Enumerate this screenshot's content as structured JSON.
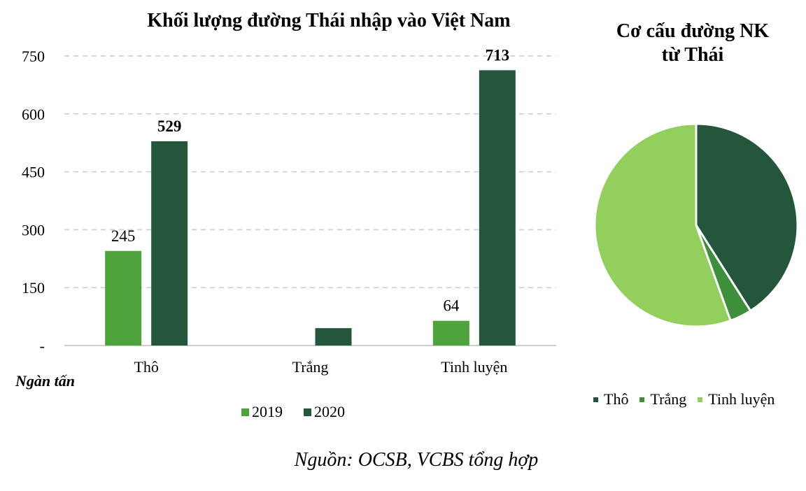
{
  "chart_data": [
    {
      "type": "bar",
      "title": "Khối lượng đường Thái nhập vào Việt Nam",
      "unit_label": "Ngàn tấn",
      "categories": [
        "Thô",
        "Trắng",
        "Tinh luyện"
      ],
      "series": [
        {
          "name": "2019",
          "values": [
            245,
            0,
            64
          ],
          "labels": [
            "245",
            "",
            "64"
          ],
          "color": "#4ea43a"
        },
        {
          "name": "2020",
          "values": [
            529,
            45,
            713
          ],
          "labels": [
            "529",
            "",
            "713"
          ],
          "color": "#23563a"
        }
      ],
      "y_ticks": [
        "-",
        "150",
        "300",
        "450",
        "600",
        "750"
      ],
      "ylim": [
        0,
        750
      ],
      "grid": true
    },
    {
      "type": "pie",
      "title_line1": "Cơ cấu đường NK",
      "title_line2": "từ Thái",
      "slices": [
        {
          "label": "Thô",
          "value": 41,
          "color": "#23563a"
        },
        {
          "label": "Trắng",
          "value": 3.5,
          "color": "#3d8f3a"
        },
        {
          "label": "Tinh luyện",
          "value": 55.5,
          "color": "#92cf5c"
        }
      ],
      "legend_position": "bottom"
    }
  ],
  "source": "Nguồn: OCSB, VCBS tổng hợp"
}
